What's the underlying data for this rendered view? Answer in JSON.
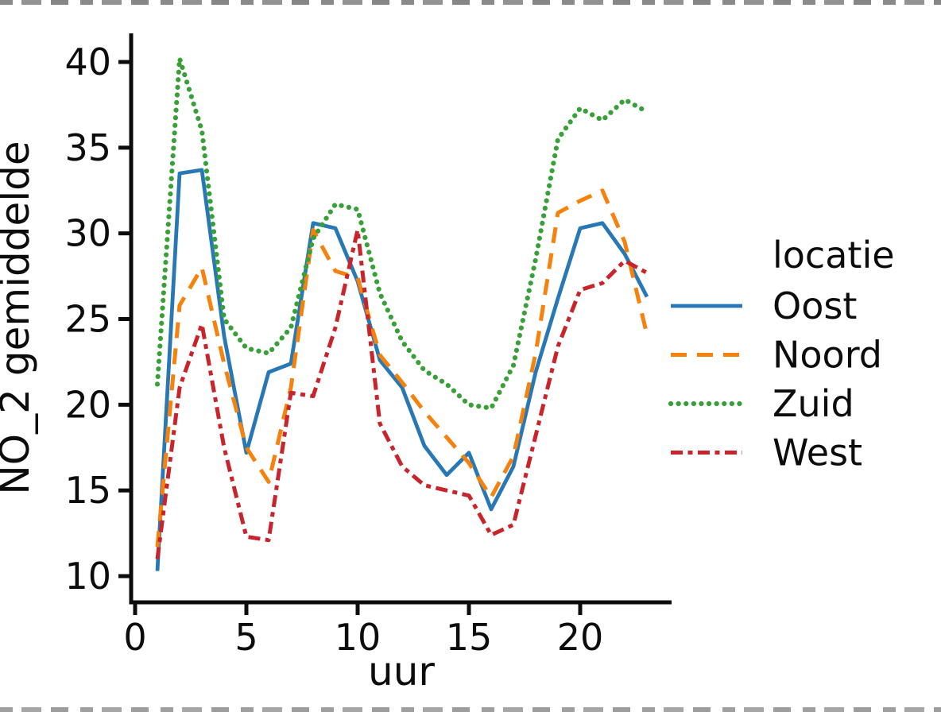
{
  "figure": {
    "background": "#ffffff"
  },
  "legend": {
    "title": "locatie"
  },
  "chart_data": {
    "type": "line",
    "title": "",
    "xlabel": "uur",
    "ylabel": "NO_2 gemiddelde",
    "xlim": [
      0,
      24
    ],
    "ylim": [
      8,
      42
    ],
    "grid": false,
    "legend_position": "right",
    "x_ticks": [
      0,
      5,
      10,
      15,
      20
    ],
    "y_ticks": [
      10,
      15,
      20,
      25,
      30,
      35,
      40
    ],
    "x": [
      1,
      2,
      3,
      4,
      5,
      6,
      7,
      8,
      9,
      10,
      11,
      12,
      13,
      14,
      15,
      16,
      17,
      18,
      19,
      20,
      21,
      22,
      23
    ],
    "series": [
      {
        "name": "Oost",
        "color": "#2878b5",
        "dash": "solid",
        "values": [
          10.3,
          33.5,
          33.7,
          24.0,
          17.2,
          21.9,
          22.4,
          30.6,
          30.3,
          27.2,
          22.6,
          21.0,
          17.6,
          15.9,
          17.2,
          13.9,
          16.4,
          21.9,
          26.2,
          30.3,
          30.6,
          28.8,
          26.3
        ]
      },
      {
        "name": "Noord",
        "color": "#f5820d",
        "dash": "dashed",
        "values": [
          11.7,
          25.8,
          28.0,
          22.4,
          17.5,
          15.5,
          21.0,
          30.2,
          27.8,
          27.4,
          22.9,
          21.3,
          19.6,
          18.1,
          16.6,
          14.6,
          17.0,
          23.0,
          31.2,
          31.9,
          32.5,
          29.5,
          24.1
        ]
      },
      {
        "name": "Zuid",
        "color": "#37a037",
        "dash": "dotted",
        "values": [
          21.2,
          40.2,
          36.0,
          25.0,
          23.3,
          23.0,
          24.5,
          29.7,
          31.7,
          31.4,
          26.5,
          23.7,
          22.0,
          21.2,
          20.0,
          19.8,
          22.3,
          28.5,
          35.5,
          37.3,
          36.6,
          37.8,
          37.1
        ]
      },
      {
        "name": "West",
        "color": "#c8242c",
        "dash": "dashdot",
        "values": [
          11.0,
          21.0,
          24.7,
          17.5,
          12.3,
          12.1,
          20.7,
          20.5,
          24.5,
          30.2,
          18.9,
          16.4,
          15.3,
          15.0,
          14.7,
          12.4,
          13.0,
          18.2,
          23.4,
          26.7,
          27.1,
          28.4,
          27.7
        ]
      }
    ]
  }
}
